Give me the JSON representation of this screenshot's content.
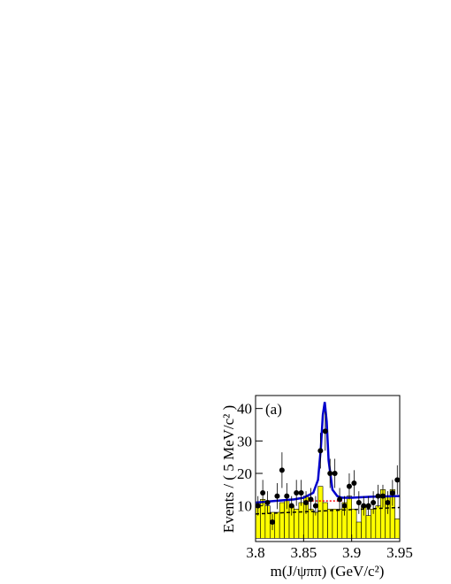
{
  "chart_data": {
    "type": "scatter",
    "annotation": "(a)",
    "x_label": "m(J/ψππ) (GeV/c²)",
    "y_label": "Events / ( 5 MeV/c² )",
    "xlim": [
      3.8,
      3.95
    ],
    "ylim": [
      -1,
      44
    ],
    "xticks": [
      3.8,
      3.85,
      3.9,
      3.95
    ],
    "yticks": [
      10,
      20,
      30,
      40
    ],
    "x": [
      3.8025,
      3.8075,
      3.8125,
      3.8175,
      3.8225,
      3.8275,
      3.8325,
      3.8375,
      3.8425,
      3.8475,
      3.8525,
      3.8575,
      3.8625,
      3.8675,
      3.8725,
      3.8775,
      3.8825,
      3.8875,
      3.8925,
      3.8975,
      3.9025,
      3.9075,
      3.9125,
      3.9175,
      3.9225,
      3.9275,
      3.9325,
      3.9375,
      3.9425,
      3.9475
    ],
    "values": [
      10,
      14,
      11,
      5,
      13,
      21,
      13,
      10,
      14,
      14,
      11,
      12,
      10,
      27,
      33,
      20,
      20,
      12,
      10,
      16,
      17,
      11,
      10,
      10,
      11,
      13,
      13,
      11,
      14,
      18
    ],
    "errors": [
      3,
      4,
      3.5,
      2.5,
      4,
      5.5,
      4,
      3,
      4,
      4,
      3.5,
      3.5,
      3,
      5.5,
      6,
      4.5,
      4.5,
      3.5,
      3,
      4,
      4,
      3.5,
      3,
      3,
      3.5,
      3.5,
      3.5,
      3.5,
      4,
      4.5
    ],
    "color": "#000000",
    "histogram": {
      "bins": [
        3.8,
        3.805,
        3.81,
        3.815,
        3.82,
        3.825,
        3.83,
        3.835,
        3.84,
        3.845,
        3.85,
        3.855,
        3.86,
        3.865,
        3.87,
        3.875,
        3.88,
        3.885,
        3.89,
        3.895,
        3.9,
        3.905,
        3.91,
        3.915,
        3.92,
        3.925,
        3.93,
        3.935,
        3.94,
        3.945,
        3.95
      ],
      "values": [
        11,
        12,
        10,
        8,
        8,
        11,
        12,
        10,
        9,
        11,
        13,
        9,
        8,
        16,
        11,
        9,
        9,
        9,
        11,
        13,
        9,
        5,
        10,
        7,
        9,
        10,
        15,
        13,
        15,
        6
      ],
      "color": "#ffff00"
    },
    "curves": [
      {
        "color": "#0000cc",
        "style": "solid",
        "x": [
          3.8,
          3.82,
          3.84,
          3.85,
          3.86,
          3.865,
          3.868,
          3.87,
          3.872,
          3.874,
          3.876,
          3.88,
          3.885,
          3.89,
          3.9,
          3.92,
          3.95
        ],
        "values": [
          11,
          11.5,
          12,
          12.5,
          14,
          18,
          28,
          38,
          42,
          36,
          24,
          15,
          13,
          12.5,
          12.5,
          12.8,
          13
        ]
      },
      {
        "color": "#ff0000",
        "style": "dotted",
        "x": [
          3.855,
          3.89
        ],
        "values": [
          11.5,
          11.5
        ]
      },
      {
        "color": "#000000",
        "style": "dashed",
        "x": [
          3.8,
          3.95
        ],
        "values": [
          7.5,
          9.5
        ]
      }
    ]
  }
}
